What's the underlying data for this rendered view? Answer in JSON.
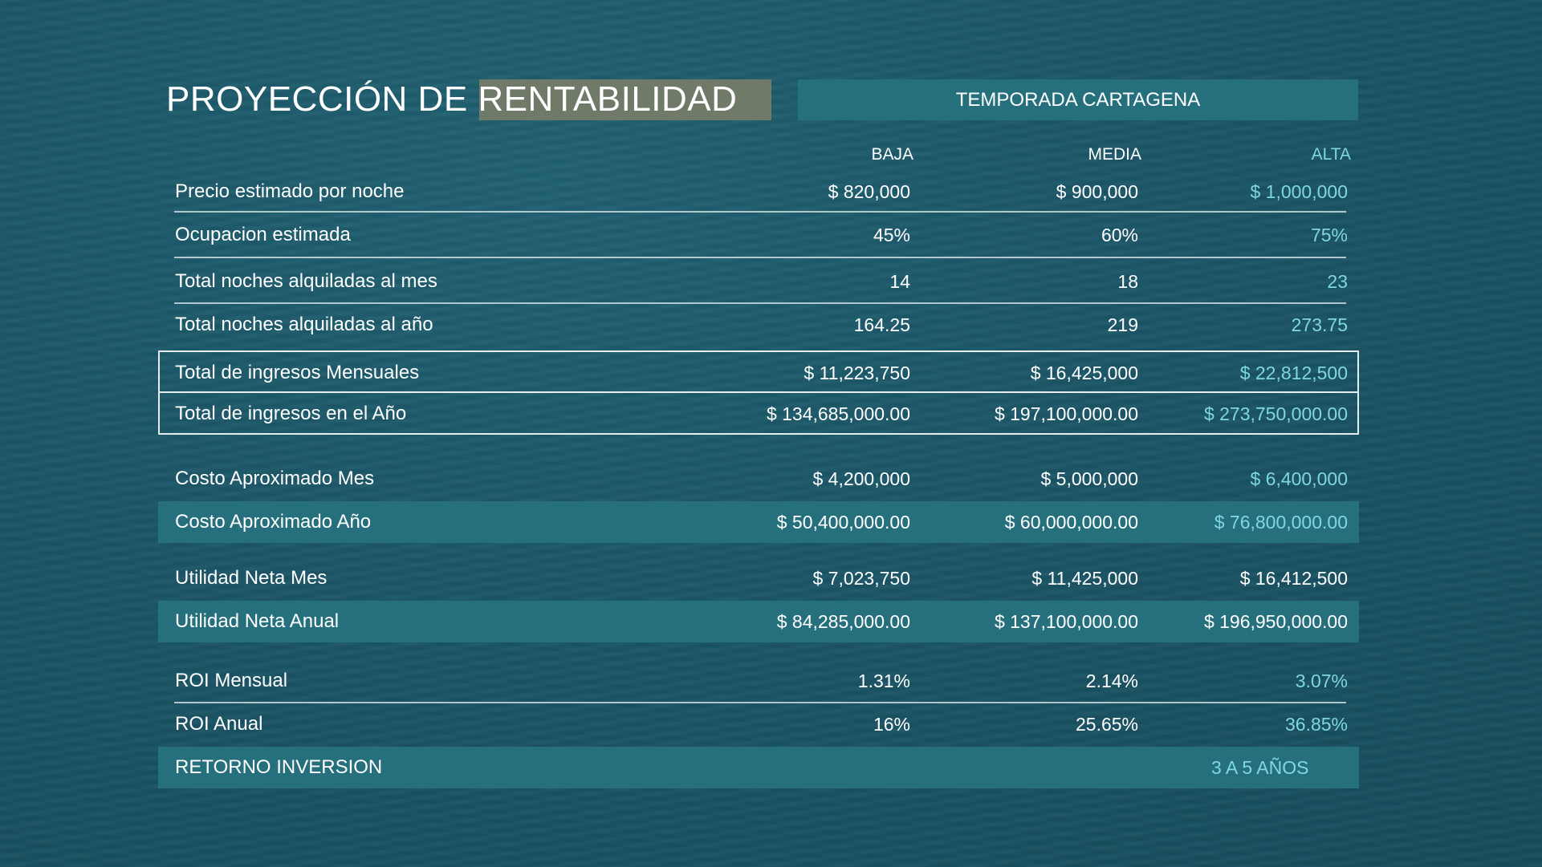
{
  "title": "PROYECCIÓN DE RENTABILIDAD",
  "season": "TEMPORADA CARTAGENA",
  "columns": [
    "BAJA",
    "MEDIA",
    "ALTA"
  ],
  "rows": [
    {
      "label": "Precio estimado por noche",
      "values": [
        "$  820,000",
        "$  900,000",
        "$  1,000,000"
      ]
    },
    {
      "label": "Ocupacion estimada",
      "values": [
        "45%",
        "60%",
        "75%"
      ]
    },
    {
      "label": "Total noches alquiladas al mes",
      "values": [
        "14",
        "18",
        "23"
      ]
    },
    {
      "label": "Total noches alquiladas al año",
      "values": [
        "164.25",
        "219",
        "273.75"
      ]
    },
    {
      "label": "Total de ingresos Mensuales",
      "values": [
        "$  11,223,750",
        "$  16,425,000",
        "$  22,812,500"
      ]
    },
    {
      "label": "Total de ingresos en el Año",
      "values": [
        "$  134,685,000.00",
        "$  197,100,000.00",
        "$  273,750,000.00"
      ]
    },
    {
      "label": "Costo Aproximado Mes",
      "values": [
        "$  4,200,000",
        "$  5,000,000",
        "$  6,400,000"
      ]
    },
    {
      "label": "Costo Aproximado Año",
      "values": [
        "$  50,400,000.00",
        "$  60,000,000.00",
        "$  76,800,000.00"
      ]
    },
    {
      "label": "Utilidad Neta Mes",
      "values": [
        "$  7,023,750",
        "$  11,425,000",
        "$  16,412,500"
      ]
    },
    {
      "label": "Utilidad Neta Anual",
      "values": [
        "$  84,285,000.00",
        "$  137,100,000.00",
        "$  196,950,000.00"
      ]
    },
    {
      "label": "ROI Mensual",
      "values": [
        "1.31%",
        "2.14%",
        "3.07%"
      ]
    },
    {
      "label": "ROI Anual",
      "values": [
        "16%",
        "25.65%",
        "36.85%"
      ]
    }
  ],
  "return": {
    "label": "RETORNO INVERSION",
    "value": "3 A 5 AÑOS"
  },
  "colors": {
    "accent": "#7fd7e3",
    "band": "#26707e",
    "title_highlight": "#6f7a68"
  }
}
